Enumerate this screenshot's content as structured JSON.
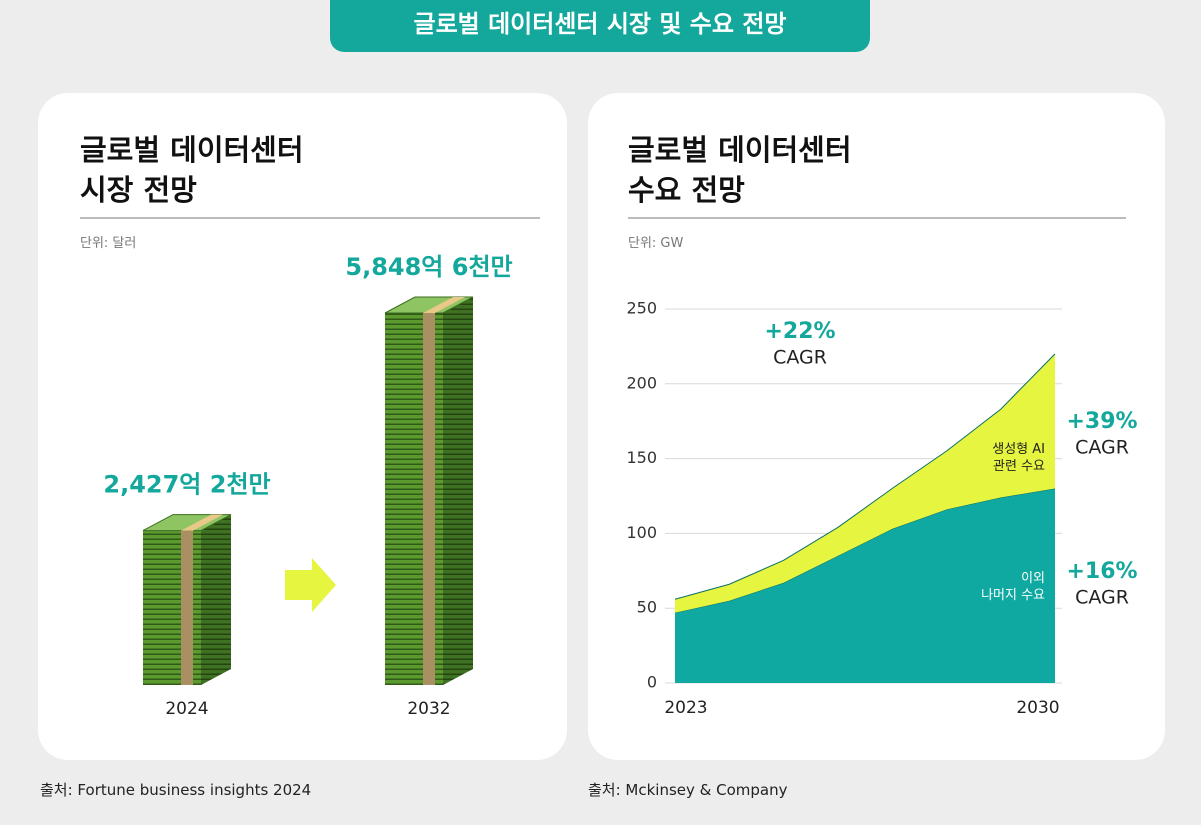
{
  "header": {
    "title": "글로벌 데이터센터 시장 및 수요 전망"
  },
  "chart_data": [
    {
      "type": "pictorial-bar",
      "title": "글로벌 데이터센터\n시장 전망",
      "unit": "단위: 달러",
      "categories": [
        "2024",
        "2032"
      ],
      "values": [
        2427.2,
        5848.6
      ],
      "value_labels": [
        "2,427억 2천만",
        "5,848억 6천만"
      ],
      "color": "#4f8a2a",
      "label_color": "#14a89c",
      "source": "출처: Fortune business insights 2024"
    },
    {
      "type": "stacked-area",
      "title": "글로벌 데이터센터\n수요 전망",
      "unit": "단위: GW",
      "x": [
        2023,
        2024,
        2025,
        2026,
        2027,
        2028,
        2029,
        2030
      ],
      "xlim": [
        2023,
        2030
      ],
      "xticks": [
        2023,
        2030
      ],
      "ylim": [
        0,
        250
      ],
      "yticks": [
        0,
        50,
        100,
        150,
        200,
        250
      ],
      "grid": true,
      "series": [
        {
          "name": "이외\n나머지 수요",
          "color": "#0fa9a1",
          "values": [
            47,
            55,
            67,
            85,
            103,
            116,
            124,
            130
          ],
          "cagr": "+16%"
        },
        {
          "name": "생성형 AI\n관련 수요",
          "color": "#e6f53f",
          "values": [
            9,
            11,
            15,
            19,
            27,
            39,
            59,
            90
          ],
          "cagr": "+39%"
        }
      ],
      "total_cagr": "+22%",
      "cagr_label": "CAGR",
      "source": "출처: Mckinsey & Company"
    }
  ]
}
